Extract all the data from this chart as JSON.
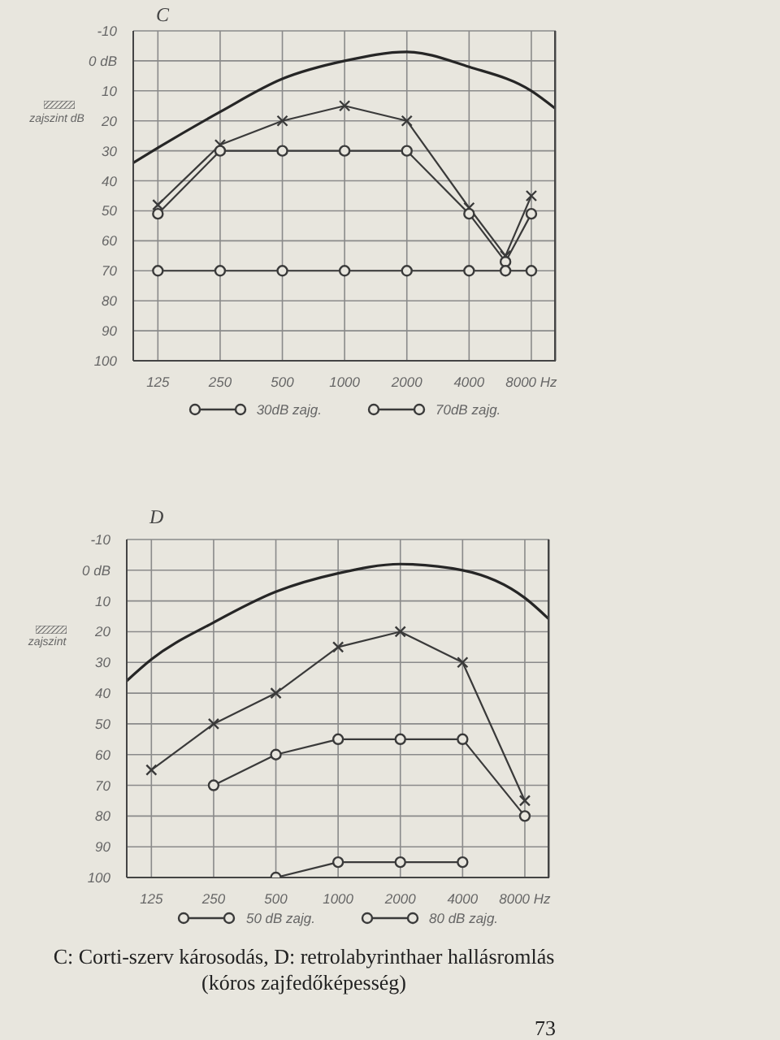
{
  "chart_data": [
    {
      "type": "line",
      "title": "C",
      "x": [
        125,
        250,
        500,
        1000,
        2000,
        4000,
        6000,
        8000
      ],
      "series": [
        {
          "color": "#262626",
          "marker": "none",
          "x": [
            95,
            125,
            250,
            500,
            1000,
            2000,
            4000,
            8000,
            10500
          ],
          "values": [
            34,
            29,
            17,
            6,
            0,
            -3,
            2,
            10,
            16
          ]
        },
        {
          "color": "#3a3a3a",
          "marker": "cross",
          "values": [
            48,
            28,
            20,
            15,
            20,
            49,
            65,
            45
          ]
        },
        {
          "name": "30dB zajg.",
          "color": "#3a3a3a",
          "marker": "circle",
          "values": [
            51,
            30,
            30,
            30,
            30,
            51,
            67,
            51
          ]
        },
        {
          "name": "70dB zajg.",
          "color": "#3a3a3a",
          "marker": "circle",
          "values": [
            70,
            70,
            70,
            70,
            70,
            70,
            70,
            70
          ]
        }
      ],
      "xlim": [
        95,
        10500
      ],
      "xticks": [
        125,
        250,
        500,
        1000,
        2000,
        4000,
        {
          "value": 8000,
          "label": "8000 Hz"
        }
      ],
      "ylim": [
        100,
        -10
      ],
      "yticks": [
        -10,
        {
          "value": 0,
          "label": "0 dB"
        },
        10,
        20,
        30,
        40,
        50,
        60,
        70,
        80,
        90,
        100
      ],
      "log": "x",
      "grid": true,
      "legend": "bottom",
      "annotations": [
        "zajszint dB"
      ]
    },
    {
      "type": "line",
      "title": "D",
      "x": [
        125,
        250,
        500,
        1000,
        2000,
        4000,
        8000
      ],
      "series": [
        {
          "color": "#262626",
          "marker": "none",
          "x": [
            95,
            125,
            250,
            500,
            1000,
            2000,
            4000,
            8000,
            10500
          ],
          "values": [
            36,
            29,
            17,
            7,
            1,
            -2,
            0,
            9,
            16
          ]
        },
        {
          "color": "#3a3a3a",
          "marker": "cross",
          "values": [
            65,
            50,
            40,
            25,
            20,
            30,
            75
          ]
        },
        {
          "name": "50 dB zajg.",
          "color": "#3a3a3a",
          "marker": "circle",
          "values": [
            null,
            70,
            60,
            55,
            55,
            55,
            80
          ]
        },
        {
          "name": "80 dB zajg.",
          "color": "#3a3a3a",
          "marker": "circle",
          "values": [
            null,
            null,
            100,
            95,
            95,
            95,
            null
          ]
        }
      ],
      "xlim": [
        95,
        10500
      ],
      "xticks": [
        125,
        250,
        500,
        1000,
        2000,
        4000,
        {
          "value": 8000,
          "label": "8000 Hz"
        }
      ],
      "ylim": [
        100,
        -10
      ],
      "yticks": [
        -10,
        {
          "value": 0,
          "label": "0 dB"
        },
        10,
        20,
        30,
        40,
        50,
        60,
        70,
        80,
        90,
        100
      ],
      "log": "x",
      "grid": true,
      "legend": "bottom",
      "annotations": [
        "zajszint",
        "C: Corti-szerv károsodás, D: retrolabyrinthaer hallásromlás (kóros zajfedőképesség)",
        "73"
      ]
    }
  ]
}
